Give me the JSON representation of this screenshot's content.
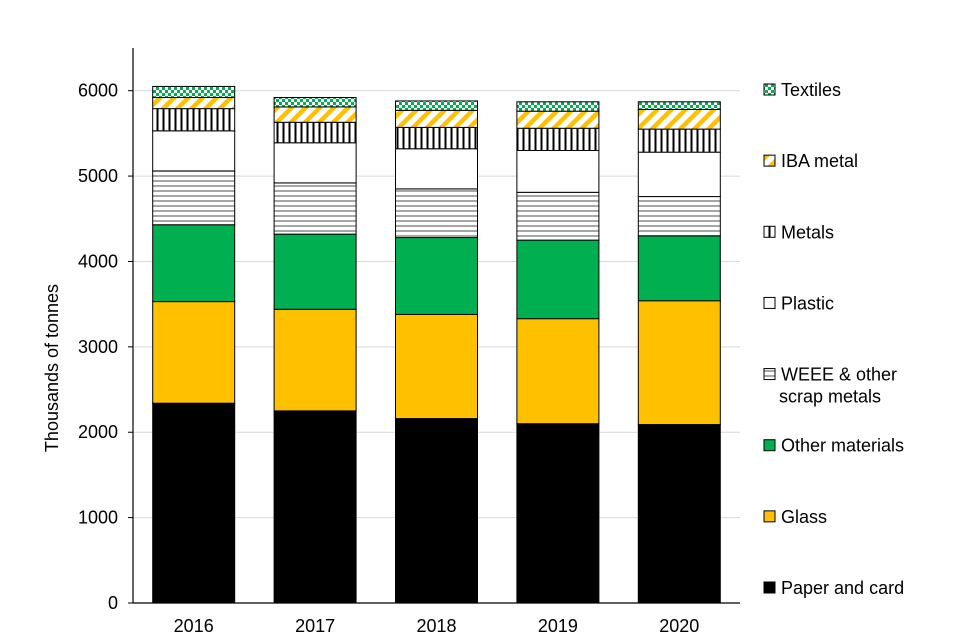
{
  "chart_data": {
    "type": "bar",
    "stacked": true,
    "title": "",
    "xlabel": "",
    "ylabel": "Thousands of tonnes",
    "ylim": [
      0,
      6500
    ],
    "yticks": [
      0,
      1000,
      2000,
      3000,
      4000,
      5000,
      6000
    ],
    "grid": "horizontal",
    "legend_position": "right",
    "categories": [
      "2016",
      "2017",
      "2018",
      "2019",
      "2020"
    ],
    "series": [
      {
        "name": "Paper and card",
        "color": "#000000",
        "pattern": "solid",
        "values": [
          2340,
          2250,
          2160,
          2100,
          2090
        ]
      },
      {
        "name": "Glass",
        "color": "#FFC000",
        "pattern": "solid",
        "values": [
          1190,
          1190,
          1220,
          1230,
          1450
        ]
      },
      {
        "name": "Other materials",
        "color": "#00B050",
        "pattern": "solid",
        "values": [
          900,
          880,
          900,
          920,
          760
        ]
      },
      {
        "name": "WEEE & other scrap metals",
        "color": "#808080",
        "pattern": "horizontal-lines",
        "values": [
          630,
          600,
          570,
          560,
          460
        ]
      },
      {
        "name": "Plastic",
        "color": "#FFFFFF",
        "pattern": "solid",
        "values": [
          470,
          470,
          470,
          490,
          520
        ]
      },
      {
        "name": "Metals",
        "color": "#000000",
        "pattern": "vertical-lines",
        "values": [
          260,
          240,
          250,
          260,
          270
        ]
      },
      {
        "name": "IBA metal",
        "color": "#FFC000",
        "pattern": "diagonal-stripes",
        "values": [
          130,
          180,
          200,
          200,
          230
        ]
      },
      {
        "name": "Textiles",
        "color": "#00B050",
        "pattern": "checker",
        "values": [
          130,
          110,
          110,
          110,
          90
        ]
      }
    ],
    "legend_order": [
      "Textiles",
      "IBA metal",
      "Metals",
      "Plastic",
      "WEEE & other scrap metals",
      "Other materials",
      "Glass",
      "Paper and card"
    ],
    "legend_lines": {
      "Textiles": [
        "Textiles"
      ],
      "IBA metal": [
        "IBA metal"
      ],
      "Metals": [
        "Metals"
      ],
      "Plastic": [
        "Plastic"
      ],
      "WEEE & other scrap metals": [
        "WEEE & other",
        "scrap metals"
      ],
      "Other materials": [
        "Other materials"
      ],
      "Glass": [
        "Glass"
      ],
      "Paper and card": [
        "Paper and card"
      ]
    }
  }
}
